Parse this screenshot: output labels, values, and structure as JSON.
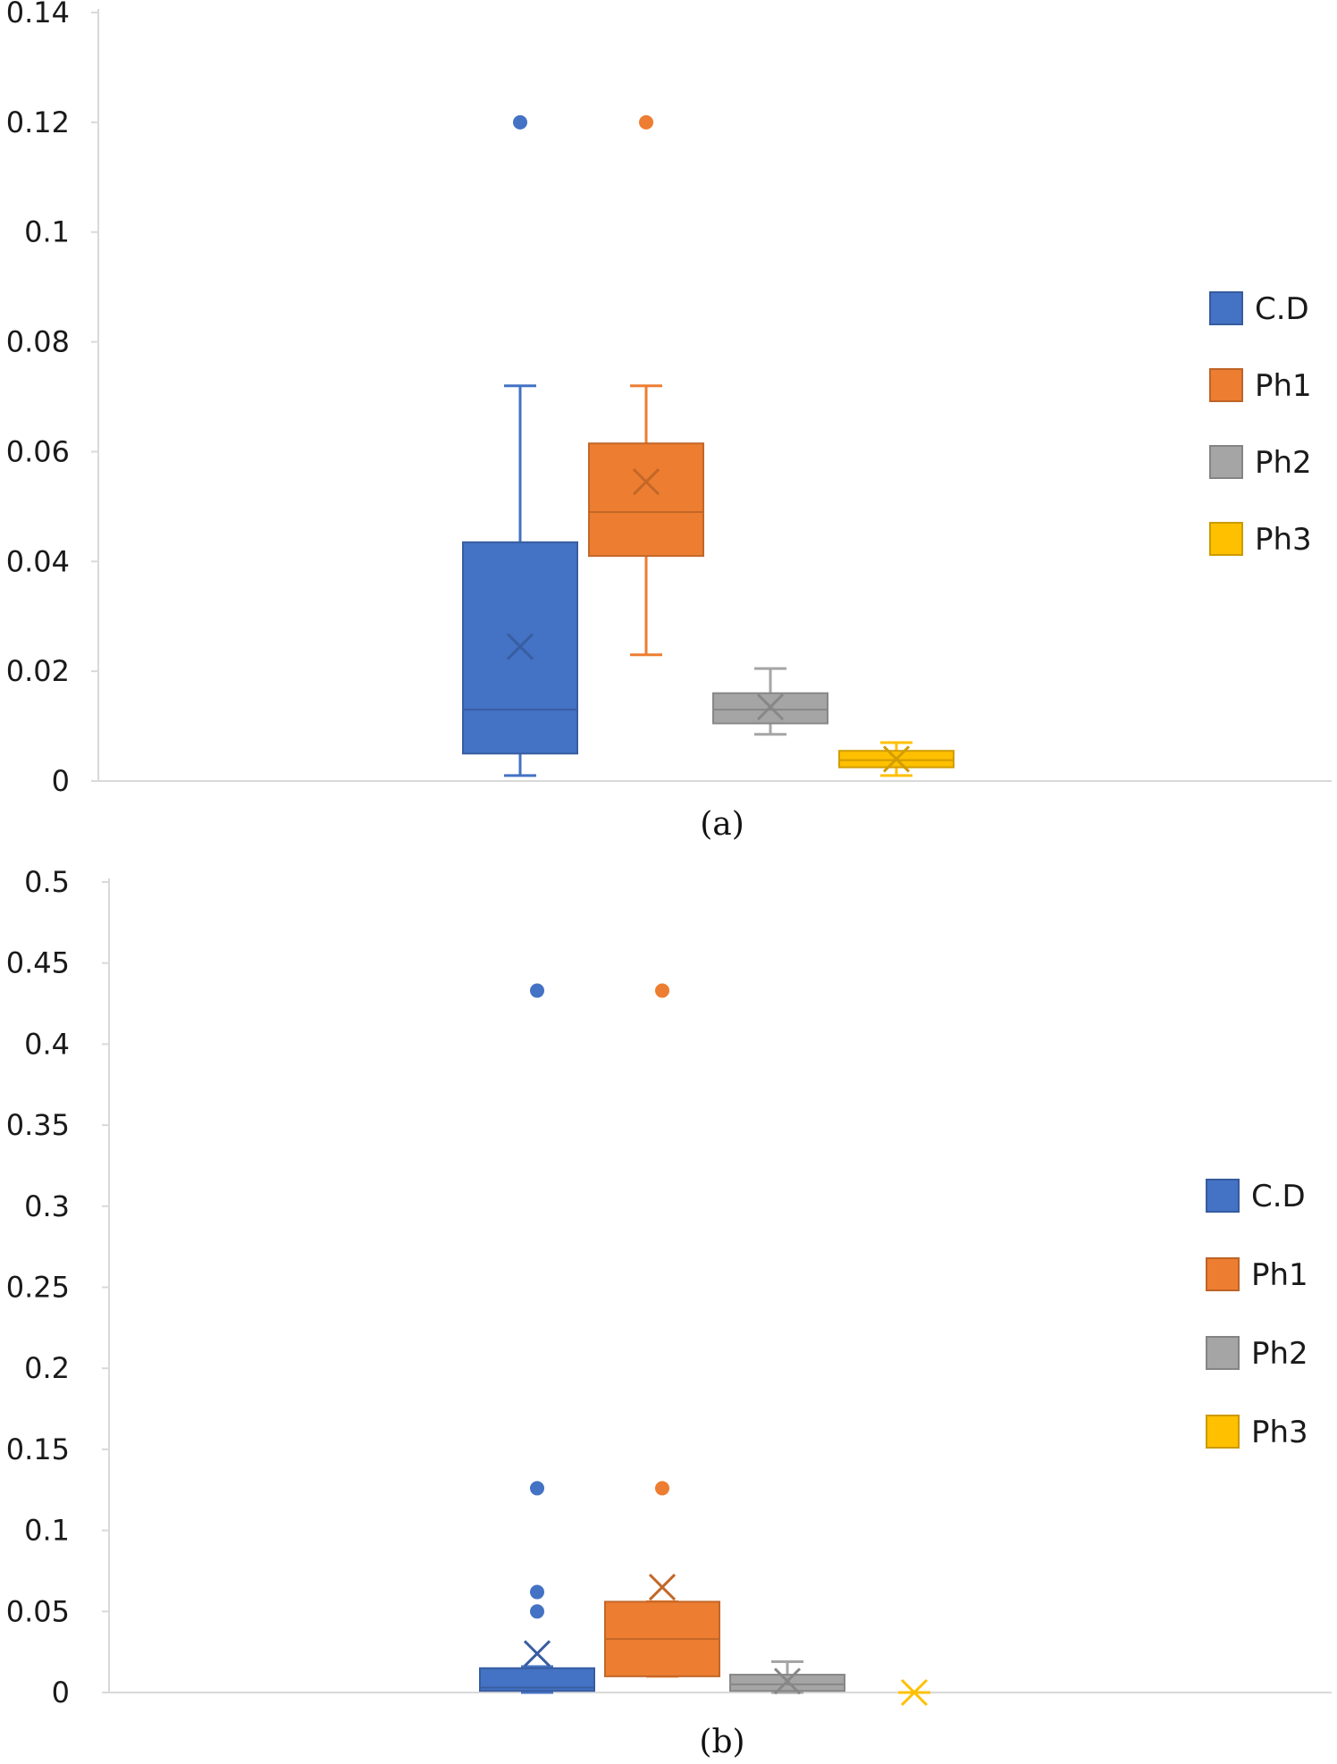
{
  "figure": {
    "captions": [
      "(a)",
      "(b)"
    ]
  },
  "legend": {
    "items": [
      {
        "label": "C.D",
        "color": "#4472C4"
      },
      {
        "label": "Ph1",
        "color": "#ED7D31"
      },
      {
        "label": "Ph2",
        "color": "#A5A5A5"
      },
      {
        "label": "Ph3",
        "color": "#FFC000"
      }
    ]
  },
  "chart_data": [
    {
      "type": "box",
      "title": "",
      "caption": "(a)",
      "xlabel": "",
      "ylabel": "",
      "ylim": [
        0,
        0.14
      ],
      "yticks": [
        0,
        0.02,
        0.04,
        0.06,
        0.08,
        0.1,
        0.12,
        0.14
      ],
      "ytick_labels": [
        "0",
        "0.02",
        "0.04",
        "0.06",
        "0.08",
        "0.1",
        "0.12",
        "0.14"
      ],
      "grid": false,
      "legend_position": "right",
      "series": [
        {
          "name": "C.D",
          "color": "#4472C4",
          "min": 0.001,
          "q1": 0.005,
          "median": 0.013,
          "q3": 0.0435,
          "max": 0.072,
          "mean": 0.0245,
          "outliers": [
            0.12
          ]
        },
        {
          "name": "Ph1",
          "color": "#ED7D31",
          "min": 0.023,
          "q1": 0.041,
          "median": 0.049,
          "q3": 0.0615,
          "max": 0.072,
          "mean": 0.0545,
          "outliers": [
            0.12
          ]
        },
        {
          "name": "Ph2",
          "color": "#A5A5A5",
          "min": 0.0085,
          "q1": 0.0105,
          "median": 0.013,
          "q3": 0.016,
          "max": 0.0205,
          "mean": 0.0135,
          "outliers": []
        },
        {
          "name": "Ph3",
          "color": "#FFC000",
          "min": 0.001,
          "q1": 0.0025,
          "median": 0.0038,
          "q3": 0.0055,
          "max": 0.007,
          "mean": 0.004,
          "outliers": []
        }
      ]
    },
    {
      "type": "box",
      "title": "",
      "caption": "(b)",
      "xlabel": "",
      "ylabel": "",
      "ylim": [
        0,
        0.5
      ],
      "yticks": [
        0,
        0.05,
        0.1,
        0.15,
        0.2,
        0.25,
        0.3,
        0.35,
        0.4,
        0.45,
        0.5
      ],
      "ytick_labels": [
        "0",
        "0.05",
        "0.1",
        "0.15",
        "0.2",
        "0.25",
        "0.3",
        "0.35",
        "0.4",
        "0.45",
        "0.5"
      ],
      "grid": false,
      "legend_position": "right",
      "series": [
        {
          "name": "C.D",
          "color": "#4472C4",
          "min": 0.0,
          "q1": 0.001,
          "median": 0.003,
          "q3": 0.015,
          "max": 0.016,
          "mean": 0.024,
          "outliers": [
            0.05,
            0.062,
            0.126,
            0.433
          ]
        },
        {
          "name": "Ph1",
          "color": "#ED7D31",
          "min": 0.01,
          "q1": 0.01,
          "median": 0.033,
          "q3": 0.056,
          "max": 0.056,
          "mean": 0.065,
          "outliers": [
            0.126,
            0.433
          ]
        },
        {
          "name": "Ph2",
          "color": "#A5A5A5",
          "min": 0.0,
          "q1": 0.001,
          "median": 0.005,
          "q3": 0.011,
          "max": 0.019,
          "mean": 0.007,
          "outliers": []
        },
        {
          "name": "Ph3",
          "color": "#FFC000",
          "min": 0.0,
          "q1": 0.0,
          "median": 0.0,
          "q3": 0.0,
          "max": 0.0,
          "mean": 0.0,
          "outliers": []
        }
      ]
    }
  ]
}
